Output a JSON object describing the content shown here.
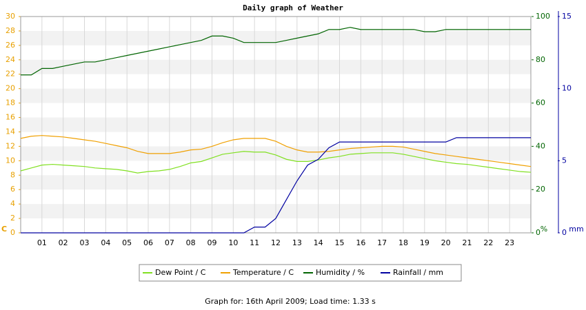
{
  "chart_data": {
    "type": "line",
    "title": "Daily graph of Weather",
    "y_label": "C",
    "y2_label": "%",
    "y3_label": "mm",
    "footer": "Graph for: 16th April 2009; Load time: 1.33 s",
    "xlim": [
      0,
      24
    ],
    "xticks": [
      {
        "value": 1,
        "label": "01"
      },
      {
        "value": 2,
        "label": "02"
      },
      {
        "value": 3,
        "label": "03"
      },
      {
        "value": 4,
        "label": "04"
      },
      {
        "value": 5,
        "label": "05"
      },
      {
        "value": 6,
        "label": "06"
      },
      {
        "value": 7,
        "label": "07"
      },
      {
        "value": 8,
        "label": "08"
      },
      {
        "value": 9,
        "label": "09"
      },
      10,
      11,
      12,
      13,
      14,
      15,
      16,
      17,
      18,
      19,
      20,
      21,
      22,
      23
    ],
    "ylim": [
      0,
      30
    ],
    "yticks": [
      0,
      2,
      4,
      6,
      8,
      10,
      12,
      14,
      16,
      18,
      20,
      22,
      24,
      26,
      28,
      30
    ],
    "y2lim": [
      0,
      100
    ],
    "y2ticks": [
      0,
      20,
      40,
      60,
      80,
      100
    ],
    "y3lim": [
      0,
      15
    ],
    "y3ticks": [
      0,
      5,
      10,
      15
    ],
    "grid": true,
    "x": [
      0,
      0.5,
      1,
      1.5,
      2,
      2.5,
      3,
      3.5,
      4,
      4.5,
      5,
      5.5,
      6,
      6.5,
      7,
      7.5,
      8,
      8.5,
      9,
      9.5,
      10,
      10.5,
      11,
      11.5,
      12,
      12.5,
      13,
      13.5,
      14,
      14.5,
      15,
      15.5,
      16,
      16.5,
      17,
      17.5,
      18,
      18.5,
      19,
      19.5,
      20,
      20.5,
      21,
      21.5,
      22,
      22.5,
      23,
      23.5,
      24
    ],
    "series": [
      {
        "name": "Dew Point / C",
        "color": "#80e020",
        "axis": "y",
        "values": [
          8.6,
          9.0,
          9.4,
          9.5,
          9.4,
          9.3,
          9.2,
          9.0,
          8.9,
          8.8,
          8.6,
          8.3,
          8.5,
          8.6,
          8.8,
          9.2,
          9.7,
          9.9,
          10.4,
          10.9,
          11.1,
          11.3,
          11.2,
          11.2,
          10.8,
          10.2,
          9.9,
          9.9,
          10.1,
          10.4,
          10.6,
          10.9,
          11.0,
          11.1,
          11.1,
          11.1,
          10.9,
          10.6,
          10.3,
          10.0,
          9.8,
          9.6,
          9.5,
          9.3,
          9.1,
          8.9,
          8.7,
          8.5,
          8.4
        ]
      },
      {
        "name": "Temperature / C",
        "color": "#f0a000",
        "axis": "y",
        "values": [
          13.1,
          13.4,
          13.5,
          13.4,
          13.3,
          13.1,
          12.9,
          12.7,
          12.4,
          12.1,
          11.8,
          11.3,
          11.0,
          11.0,
          11.0,
          11.2,
          11.5,
          11.6,
          12.0,
          12.5,
          12.9,
          13.1,
          13.1,
          13.1,
          12.7,
          12.0,
          11.5,
          11.2,
          11.2,
          11.3,
          11.5,
          11.7,
          11.8,
          11.9,
          12.0,
          12.0,
          11.9,
          11.6,
          11.3,
          11.0,
          10.8,
          10.6,
          10.4,
          10.2,
          10.0,
          9.8,
          9.6,
          9.4,
          9.2
        ]
      },
      {
        "name": "Humidity / %",
        "color": "#006400",
        "axis": "y2",
        "values": [
          73,
          73,
          76,
          76,
          77,
          78,
          79,
          79,
          80,
          81,
          82,
          83,
          84,
          85,
          86,
          87,
          88,
          89,
          91,
          91,
          90,
          88,
          88,
          88,
          88,
          89,
          90,
          91,
          92,
          94,
          94,
          95,
          94,
          94,
          94,
          94,
          94,
          94,
          93,
          93,
          94,
          94,
          94,
          94,
          94,
          94,
          94,
          94,
          94
        ]
      },
      {
        "name": "Rainfall / mm",
        "color": "#0000a0",
        "axis": "y3",
        "values": [
          0,
          0,
          0,
          0,
          0,
          0,
          0,
          0,
          0,
          0,
          0,
          0,
          0,
          0,
          0,
          0,
          0,
          0,
          0,
          0,
          0,
          0,
          0.4,
          0.4,
          1.0,
          2.3,
          3.6,
          4.7,
          5.1,
          5.9,
          6.3,
          6.3,
          6.3,
          6.3,
          6.3,
          6.3,
          6.3,
          6.3,
          6.3,
          6.3,
          6.3,
          6.6,
          6.6,
          6.6,
          6.6,
          6.6,
          6.6,
          6.6,
          6.6
        ]
      }
    ]
  }
}
